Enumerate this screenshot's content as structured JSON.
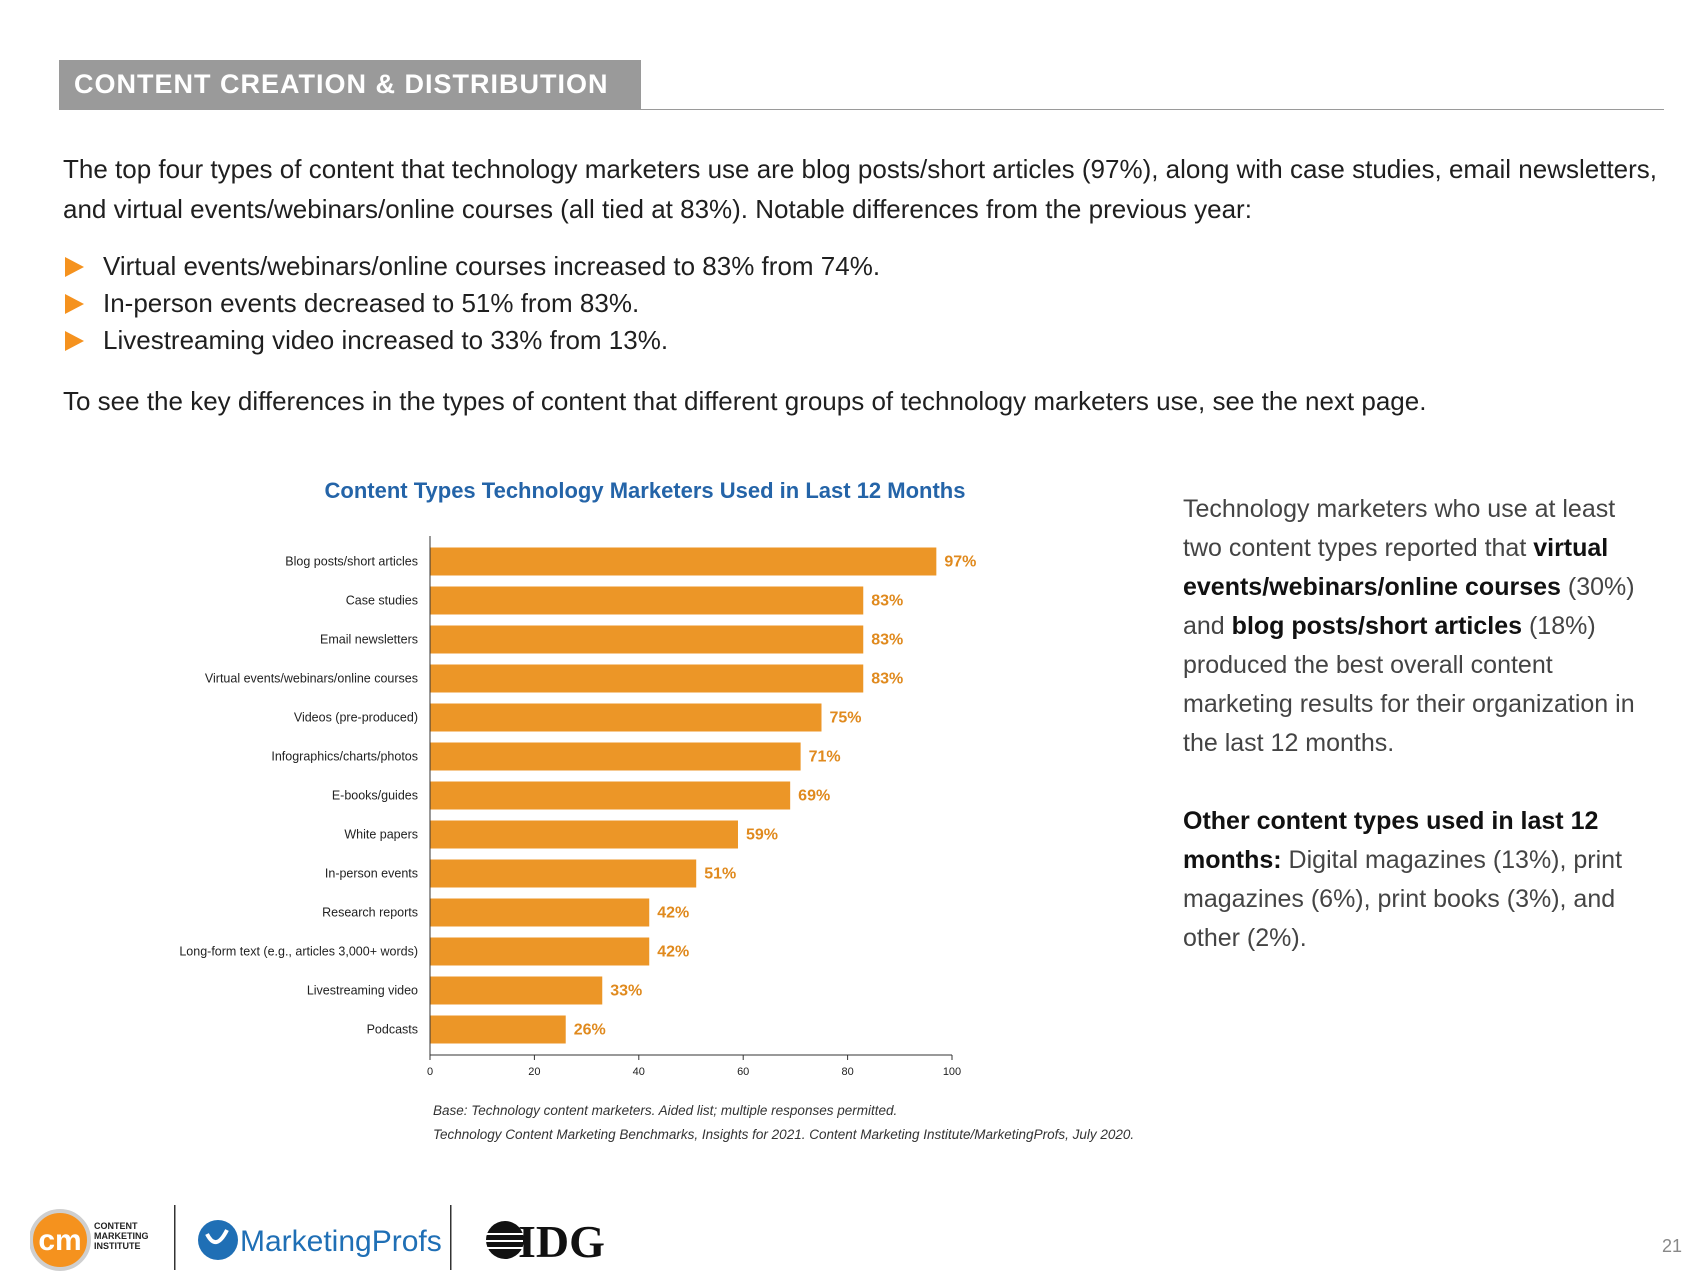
{
  "header": {
    "section_title": "CONTENT CREATION & DISTRIBUTION"
  },
  "intro": "The top four types of content that technology marketers use are blog posts/short articles (97%), along with case studies, email newsletters, and virtual events/webinars/online courses (all tied at 83%). Notable differences from the previous year:",
  "bullets": [
    "Virtual events/webinars/online courses increased to 83% from 74%.",
    "In-person events decreased to 51% from 83%.",
    "Livestreaming video increased to 33% from 13%."
  ],
  "outro": "To see the key differences in the types of content that different groups of technology marketers use, see the next page.",
  "chart_data": {
    "type": "bar",
    "orientation": "horizontal",
    "title": "Content Types Technology Marketers Used in Last 12 Months",
    "categories": [
      "Blog posts/short articles",
      "Case studies",
      "Email newsletters",
      "Virtual events/webinars/online courses",
      "Videos (pre-produced)",
      "Infographics/charts/photos",
      "E-books/guides",
      "White papers",
      "In-person events",
      "Research reports",
      "Long-form text (e.g., articles 3,000+ words)",
      "Livestreaming video",
      "Podcasts"
    ],
    "values": [
      97,
      83,
      83,
      83,
      75,
      71,
      69,
      59,
      51,
      42,
      42,
      33,
      26
    ],
    "value_labels": [
      "97%",
      "83%",
      "83%",
      "83%",
      "75%",
      "71%",
      "69%",
      "59%",
      "51%",
      "42%",
      "42%",
      "33%",
      "26%"
    ],
    "xlim": [
      0,
      100
    ],
    "xticks": [
      0,
      20,
      40,
      60,
      80,
      100
    ],
    "grid": false,
    "bar_color": "#ec9627",
    "label_color": "#e08a1e"
  },
  "source": {
    "line1": "Base: Technology content marketers. Aided list; multiple responses permitted.",
    "line2": "Technology Content Marketing Benchmarks, Insights for 2021. Content Marketing Institute/MarketingProfs, July 2020."
  },
  "sidebar": {
    "p1": {
      "a": "Technology marketers who use at least two content types reported that ",
      "b1": "virtual events/webinars/online courses",
      "c": " (30%) and ",
      "b2": "blog posts/short articles",
      "d": " (18%) produced the best overall content marketing results for their organization in the last 12 months."
    },
    "p2": {
      "b": "Other content types used in last 12 months:",
      "rest": " Digital magazines (13%), print magazines (6%), print books (3%), and other (2%)."
    }
  },
  "footer": {
    "cmi_mark": "cm",
    "cmi_text": [
      "CONTENT",
      "MARKETING",
      "INSTITUTE"
    ],
    "mp_name": "MarketingProfs",
    "idg_name": "IDG",
    "page_number": "21"
  },
  "colors": {
    "header_bg": "#9a9a9a",
    "bullet": "#f5921e",
    "title_blue": "#2464a8",
    "cmi_orange": "#f5921e",
    "mp_blue": "#1f6fb5"
  }
}
